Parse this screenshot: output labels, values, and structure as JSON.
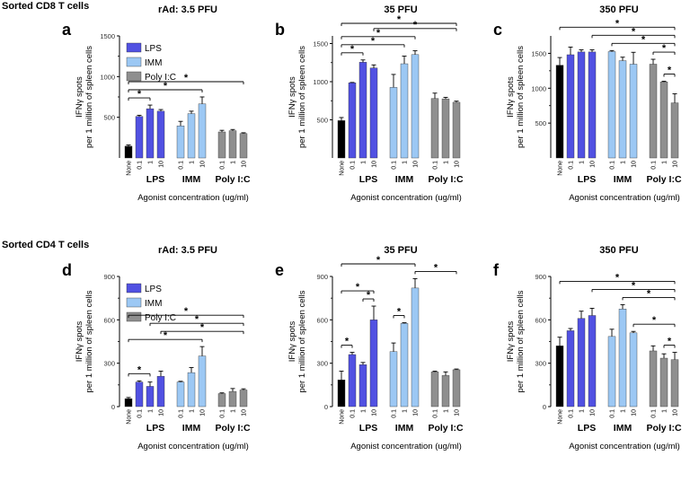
{
  "section_cd8": "Sorted CD8 T cells",
  "section_cd4": "Sorted CD4 T cells",
  "colors": {
    "none": "#000000",
    "LPS": "#5151e2",
    "IMM": "#9cc8f4",
    "PolyIC": "#8f8f8f"
  },
  "chart_data": [
    {
      "type": "bar",
      "panel_letter": "a",
      "title": "rAd: 3.5 PFU",
      "ylabel": "IFNγ spots\nper 1 million of spleen cells",
      "xlabel": "Agonist concentration (ug/ml)",
      "ylim": [
        0,
        1500
      ],
      "yticks": [
        500,
        1000,
        1500
      ],
      "legend": {
        "entries": [
          "LPS",
          "IMM",
          "Poly I:C"
        ],
        "position": "top-left"
      },
      "groups": [
        "LPS",
        "IMM",
        "Poly I:C"
      ],
      "x_tick_labels": [
        "None",
        "0.1",
        "1",
        "10",
        "0.1",
        "1",
        "10",
        "0.1",
        "1",
        "10"
      ],
      "series": [
        {
          "name": "None",
          "values": [
            145
          ],
          "errors": [
            15
          ]
        },
        {
          "name": "LPS",
          "values": [
            510,
            605,
            575
          ],
          "errors": [
            15,
            45,
            20
          ]
        },
        {
          "name": "IMM",
          "values": [
            395,
            545,
            665
          ],
          "errors": [
            55,
            30,
            85
          ]
        },
        {
          "name": "Poly I:C",
          "values": [
            320,
            335,
            300
          ],
          "errors": [
            20,
            15,
            10
          ]
        }
      ],
      "significance": [
        {
          "from": 0,
          "to": 2,
          "label": "*"
        },
        {
          "from": 0,
          "to": 6,
          "label": "*"
        },
        {
          "from": 0,
          "to": 9,
          "label": "*"
        }
      ]
    },
    {
      "type": "bar",
      "panel_letter": "b",
      "title": "35 PFU",
      "ylabel": "IFNγ spots\nper 1 million of spleen cells",
      "xlabel": "Agonist concentration (ug/ml)",
      "ylim": [
        0,
        1600
      ],
      "yticks": [
        500,
        1000,
        1500
      ],
      "groups": [
        "LPS",
        "IMM",
        "Poly I:C"
      ],
      "x_tick_labels": [
        "None",
        "0.1",
        "1",
        "10",
        "0.1",
        "1",
        "10",
        "0.1",
        "1",
        "10"
      ],
      "series": [
        {
          "name": "None",
          "values": [
            490
          ],
          "errors": [
            40
          ]
        },
        {
          "name": "LPS",
          "values": [
            985,
            1255,
            1180
          ],
          "errors": [
            5,
            30,
            40
          ]
        },
        {
          "name": "IMM",
          "values": [
            925,
            1235,
            1355
          ],
          "errors": [
            170,
            100,
            50
          ]
        },
        {
          "name": "Poly I:C",
          "values": [
            780,
            775,
            730
          ],
          "errors": [
            70,
            20,
            15
          ]
        }
      ],
      "significance": [
        {
          "from": 0,
          "to": 2,
          "label": "*"
        },
        {
          "from": 0,
          "to": 5,
          "label": "*"
        },
        {
          "from": 0,
          "to": 6,
          "label": "*"
        },
        {
          "from": 0,
          "to": 9,
          "label": "*"
        },
        {
          "from": 3,
          "to": 9,
          "label": "*"
        }
      ]
    },
    {
      "type": "bar",
      "panel_letter": "c",
      "title": "350 PFU",
      "ylabel": "IFNγ spots\nper 1 million of spleen cells",
      "xlabel": "Agonist concentration (ug/ml)",
      "ylim": [
        0,
        1750
      ],
      "yticks": [
        500,
        1000,
        1500
      ],
      "groups": [
        "LPS",
        "IMM",
        "Poly I:C"
      ],
      "x_tick_labels": [
        "None",
        "0.1",
        "1",
        "10",
        "0.1",
        "1",
        "10",
        "0.1",
        "1",
        "10"
      ],
      "series": [
        {
          "name": "None",
          "values": [
            1330
          ],
          "errors": [
            110
          ]
        },
        {
          "name": "LPS",
          "values": [
            1480,
            1520,
            1520
          ],
          "errors": [
            110,
            30,
            30
          ]
        },
        {
          "name": "IMM",
          "values": [
            1525,
            1395,
            1345
          ],
          "errors": [
            15,
            50,
            170
          ]
        },
        {
          "name": "Poly I:C",
          "values": [
            1345,
            1090,
            790
          ],
          "errors": [
            70,
            10,
            130
          ]
        }
      ],
      "significance": [
        {
          "from": 0,
          "to": 9,
          "label": "*"
        },
        {
          "from": 3,
          "to": 9,
          "label": "*"
        },
        {
          "from": 4,
          "to": 9,
          "label": "*"
        },
        {
          "from": 7,
          "to": 9,
          "label": "*"
        },
        {
          "from": 8,
          "to": 9,
          "label": "*"
        }
      ]
    },
    {
      "type": "bar",
      "panel_letter": "d",
      "title": "rAd: 3.5 PFU",
      "ylabel": "IFNγ spots\nper 1 million of spleen cells",
      "xlabel": "Agonist concentration (ug/ml)",
      "ylim": [
        0,
        900
      ],
      "yticks": [
        0,
        300,
        600,
        900
      ],
      "legend": {
        "entries": [
          "LPS",
          "IMM",
          "Poly I:C"
        ],
        "position": "top-left"
      },
      "groups": [
        "LPS",
        "IMM",
        "Poly I:C"
      ],
      "x_tick_labels": [
        "None",
        "0.1",
        "1",
        "10",
        "0.1",
        "1",
        "10",
        "0.1",
        "1",
        "10"
      ],
      "series": [
        {
          "name": "None",
          "values": [
            55
          ],
          "errors": [
            8
          ]
        },
        {
          "name": "LPS",
          "values": [
            170,
            140,
            210
          ],
          "errors": [
            8,
            30,
            35
          ]
        },
        {
          "name": "IMM",
          "values": [
            170,
            235,
            350
          ],
          "errors": [
            5,
            35,
            65
          ]
        },
        {
          "name": "Poly I:C",
          "values": [
            90,
            105,
            115
          ],
          "errors": [
            5,
            20,
            8
          ]
        }
      ],
      "significance": [
        {
          "from": 0,
          "to": 2,
          "label": "*"
        },
        {
          "from": 0,
          "to": 6,
          "label": "*"
        },
        {
          "from": 0,
          "to": 9,
          "label": "*"
        },
        {
          "from": 2,
          "to": 9,
          "label": "*"
        },
        {
          "from": 3,
          "to": 9,
          "label": "*"
        }
      ]
    },
    {
      "type": "bar",
      "panel_letter": "e",
      "title": "35 PFU",
      "ylabel": "IFNγ spots\nper 1 million of spleen cells",
      "xlabel": "Agonist concentration (ug/ml)",
      "ylim": [
        0,
        900
      ],
      "yticks": [
        0,
        300,
        600,
        900
      ],
      "groups": [
        "LPS",
        "IMM",
        "Poly I:C"
      ],
      "x_tick_labels": [
        "None",
        "0.1",
        "1",
        "10",
        "0.1",
        "1",
        "10",
        "0.1",
        "1",
        "10"
      ],
      "series": [
        {
          "name": "None",
          "values": [
            185
          ],
          "errors": [
            60
          ]
        },
        {
          "name": "LPS",
          "values": [
            360,
            290,
            600
          ],
          "errors": [
            15,
            15,
            95
          ]
        },
        {
          "name": "IMM",
          "values": [
            380,
            575,
            820
          ],
          "errors": [
            60,
            5,
            65
          ]
        },
        {
          "name": "Poly I:C",
          "values": [
            240,
            215,
            255
          ],
          "errors": [
            5,
            25,
            5
          ]
        }
      ],
      "significance": [
        {
          "from": 0,
          "to": 1,
          "label": "*"
        },
        {
          "from": 0,
          "to": 3,
          "label": "*"
        },
        {
          "from": 0,
          "to": 6,
          "label": "*"
        },
        {
          "from": 2,
          "to": 3,
          "label": "*"
        },
        {
          "from": 4,
          "to": 5,
          "label": "*"
        },
        {
          "from": 6,
          "to": 9,
          "label": "*"
        }
      ]
    },
    {
      "type": "bar",
      "panel_letter": "f",
      "title": "350 PFU",
      "ylabel": "IFNγ spots\nper 1 million of spleen cells",
      "xlabel": "Agonist concentration (ug/ml)",
      "ylim": [
        0,
        900
      ],
      "yticks": [
        0,
        300,
        600,
        900
      ],
      "groups": [
        "LPS",
        "IMM",
        "Poly I:C"
      ],
      "x_tick_labels": [
        "None",
        "0.1",
        "1",
        "10",
        "0.1",
        "1",
        "10",
        "0.1",
        "1",
        "10"
      ],
      "series": [
        {
          "name": "None",
          "values": [
            420
          ],
          "errors": [
            60
          ]
        },
        {
          "name": "LPS",
          "values": [
            525,
            610,
            630
          ],
          "errors": [
            15,
            50,
            50
          ]
        },
        {
          "name": "IMM",
          "values": [
            485,
            675,
            510
          ],
          "errors": [
            50,
            30,
            10
          ]
        },
        {
          "name": "Poly I:C",
          "values": [
            385,
            335,
            325
          ],
          "errors": [
            35,
            30,
            50
          ]
        }
      ],
      "significance": [
        {
          "from": 0,
          "to": 9,
          "label": "*"
        },
        {
          "from": 3,
          "to": 9,
          "label": "*"
        },
        {
          "from": 5,
          "to": 9,
          "label": "*"
        },
        {
          "from": 6,
          "to": 9,
          "label": "*"
        },
        {
          "from": 8,
          "to": 9,
          "label": "*"
        }
      ]
    }
  ]
}
